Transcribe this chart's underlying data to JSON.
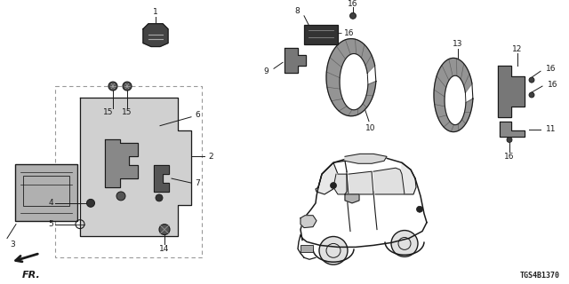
{
  "background_color": "#ffffff",
  "line_color": "#1a1a1a",
  "gray_fill": "#c8c8c8",
  "dark_fill": "#404040",
  "dashed_color": "#999999",
  "diagram_code": "TGS4B1370",
  "figsize": [
    6.4,
    3.2
  ],
  "dpi": 100
}
